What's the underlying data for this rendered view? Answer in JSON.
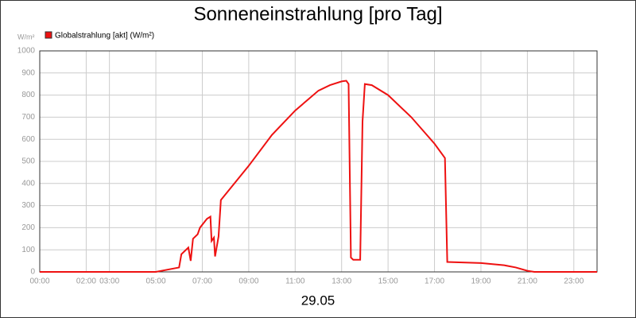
{
  "chart_data": {
    "type": "line",
    "title": "Sonneneinstrahlung [pro Tag]",
    "y_label": "W/m²",
    "x_label": "29.05",
    "xlim": [
      0,
      24
    ],
    "ylim": [
      0,
      1000
    ],
    "xticks": [
      {
        "value": 0,
        "label": "00:00"
      },
      {
        "value": 2,
        "label": "02:00"
      },
      {
        "value": 3,
        "label": "03:00"
      },
      {
        "value": 5,
        "label": "05:00"
      },
      {
        "value": 7,
        "label": "07:00"
      },
      {
        "value": 9,
        "label": "09:00"
      },
      {
        "value": 11,
        "label": "11:00"
      },
      {
        "value": 13,
        "label": "13:00"
      },
      {
        "value": 15,
        "label": "15:00"
      },
      {
        "value": 17,
        "label": "17:00"
      },
      {
        "value": 19,
        "label": "19:00"
      },
      {
        "value": 21,
        "label": "21:00"
      },
      {
        "value": 23,
        "label": "23:00"
      }
    ],
    "yticks": [
      0,
      100,
      200,
      300,
      400,
      500,
      600,
      700,
      800,
      900,
      1000
    ],
    "grid": true,
    "legend": "top-left",
    "x": [
      0,
      5,
      6,
      6.1,
      6.4,
      6.5,
      6.6,
      6.8,
      6.9,
      7.2,
      7.35,
      7.4,
      7.5,
      7.55,
      7.7,
      7.8,
      9,
      10,
      11,
      12,
      12.5,
      13,
      13.2,
      13.3,
      13.4,
      13.5,
      13.8,
      13.9,
      14,
      14.3,
      15,
      16,
      17,
      17.45,
      17.55,
      19,
      20,
      20.5,
      21,
      21.3,
      24
    ],
    "series": [
      {
        "name": "Globalstrahlung [akt] (W/m²)",
        "color": "#ee1111",
        "values": [
          0,
          0,
          20,
          80,
          110,
          50,
          150,
          170,
          200,
          240,
          250,
          140,
          155,
          70,
          160,
          325,
          480,
          620,
          730,
          820,
          845,
          862,
          865,
          850,
          65,
          55,
          55,
          680,
          850,
          845,
          800,
          700,
          580,
          515,
          45,
          40,
          30,
          20,
          5,
          0,
          0
        ]
      }
    ]
  }
}
